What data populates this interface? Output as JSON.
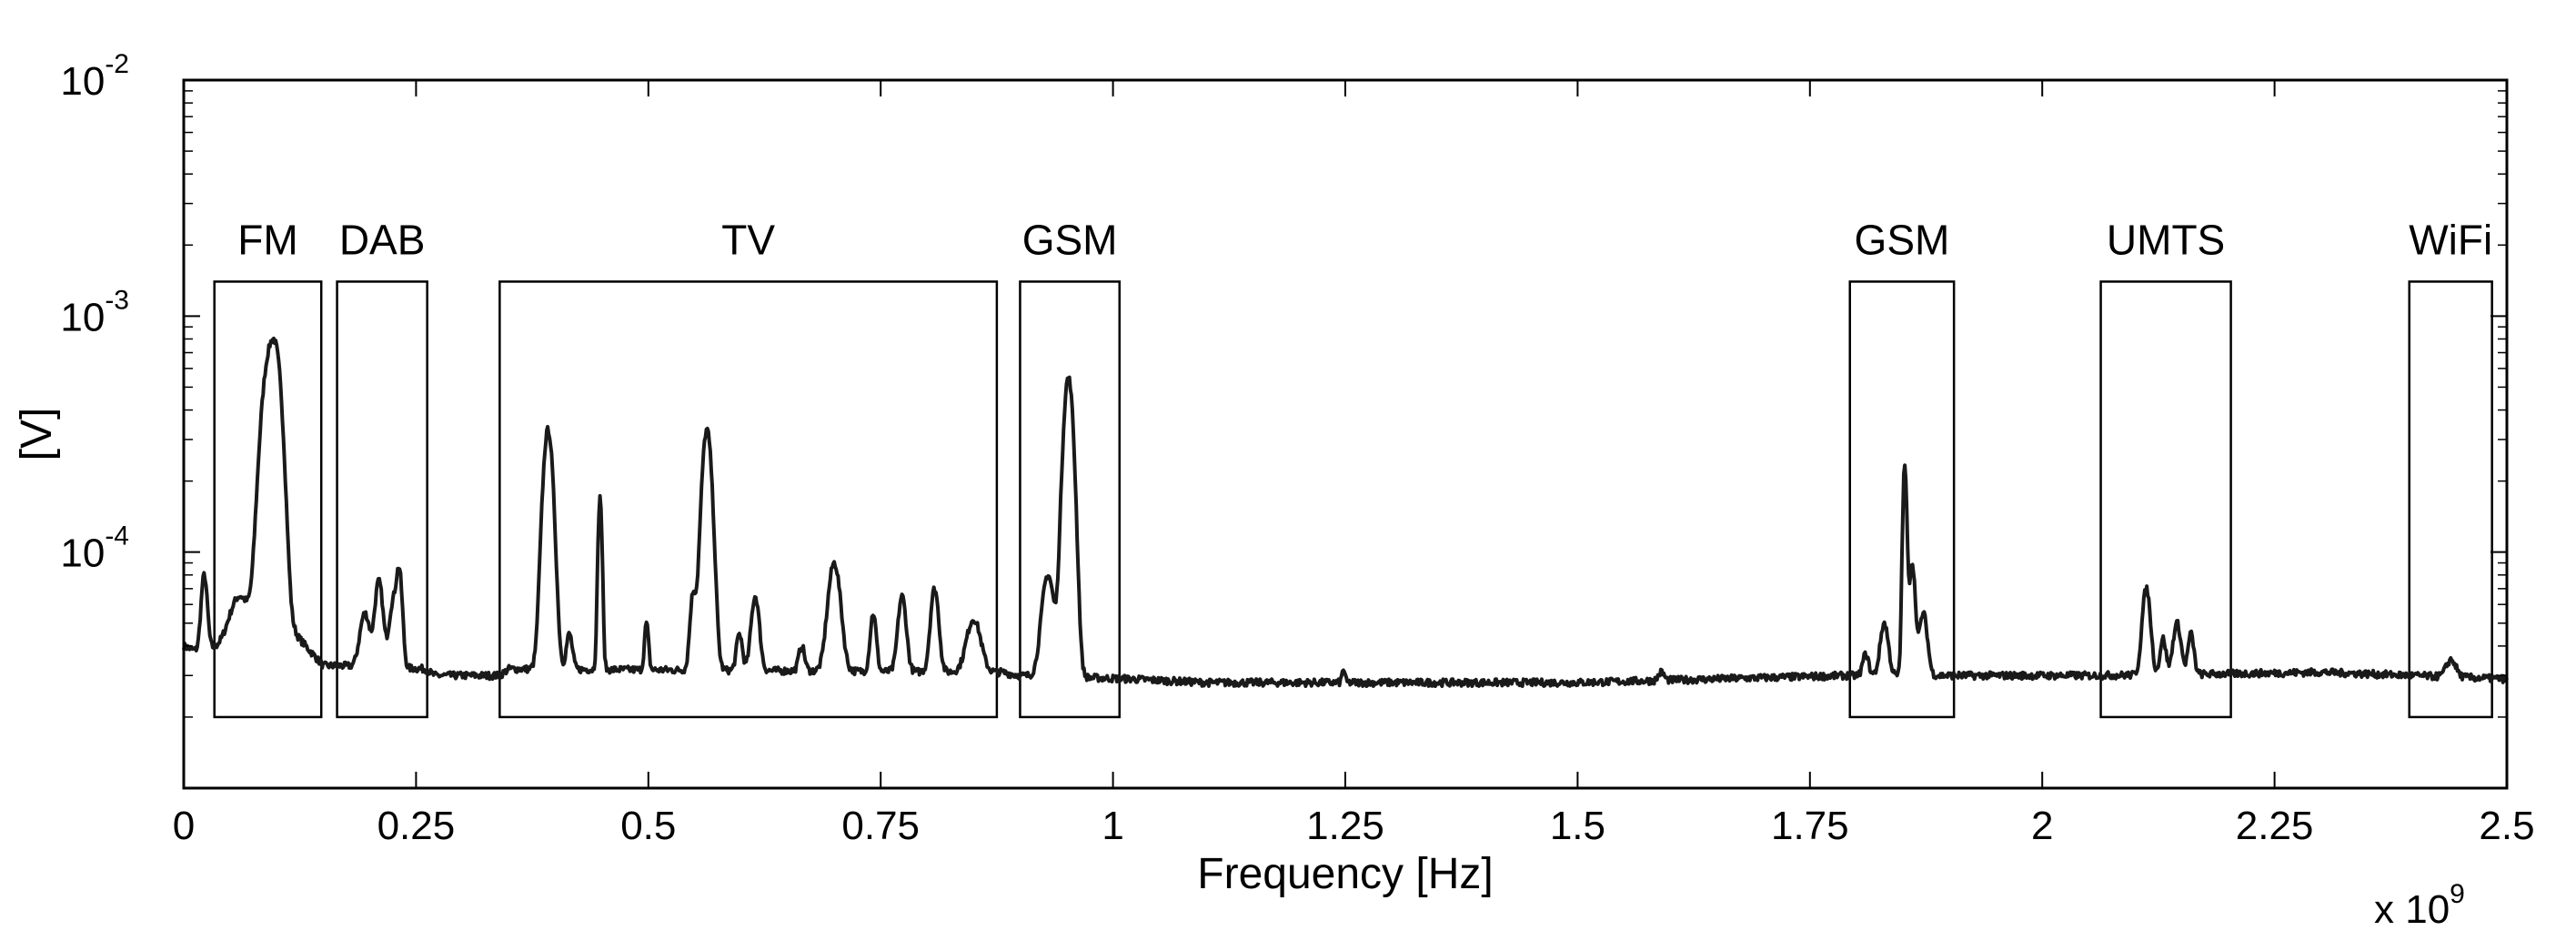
{
  "chart_data": {
    "type": "line",
    "title": "",
    "xlabel": "Frequency [Hz]",
    "ylabel": "[V]",
    "x_multiplier_label": {
      "base": "x 10",
      "exponent": "9"
    },
    "xlim": [
      0,
      2.5
    ],
    "ylim": [
      1e-05,
      0.01
    ],
    "yscale": "log",
    "grid": false,
    "x_ticks": [
      {
        "value": 0,
        "label": "0"
      },
      {
        "value": 0.25,
        "label": "0.25"
      },
      {
        "value": 0.5,
        "label": "0.5"
      },
      {
        "value": 0.75,
        "label": "0.75"
      },
      {
        "value": 1,
        "label": "1"
      },
      {
        "value": 1.25,
        "label": "1.25"
      },
      {
        "value": 1.5,
        "label": "1.5"
      },
      {
        "value": 1.75,
        "label": "1.75"
      },
      {
        "value": 2,
        "label": "2"
      },
      {
        "value": 2.25,
        "label": "2.25"
      },
      {
        "value": 2.5,
        "label": "2.5"
      }
    ],
    "y_ticks": [
      {
        "value": 0.0001,
        "base": "10",
        "exponent": "-4"
      },
      {
        "value": 0.001,
        "base": "10",
        "exponent": "-3"
      },
      {
        "value": 0.01,
        "base": "10",
        "exponent": "-2"
      }
    ],
    "bands": [
      {
        "label": "FM",
        "x": [
          0.033,
          0.148
        ],
        "y": [
          2e-05,
          0.0014
        ]
      },
      {
        "label": "DAB",
        "x": [
          0.165,
          0.262
        ],
        "y": [
          2e-05,
          0.0014
        ]
      },
      {
        "label": "TV",
        "x": [
          0.34,
          0.875
        ],
        "y": [
          2e-05,
          0.0014
        ]
      },
      {
        "label": "GSM",
        "x": [
          0.9,
          1.007
        ],
        "y": [
          2e-05,
          0.0014
        ]
      },
      {
        "label": "GSM",
        "x": [
          1.793,
          1.905
        ],
        "y": [
          2e-05,
          0.0014
        ]
      },
      {
        "label": "UMTS",
        "x": [
          2.063,
          2.203
        ],
        "y": [
          2e-05,
          0.0014
        ]
      },
      {
        "label": "WiFi",
        "x": [
          2.395,
          2.484
        ],
        "y": [
          2e-05,
          0.0014
        ]
      }
    ],
    "series": [
      {
        "color": "#1a1a1a",
        "baseline": [
          [
            0,
            4e-05
          ],
          [
            0.015,
            3.8e-05
          ],
          [
            0.12,
            4.5e-05
          ],
          [
            0.15,
            3.3e-05
          ],
          [
            0.17,
            3.3e-05
          ],
          [
            0.26,
            3.2e-05
          ],
          [
            0.27,
            3e-05
          ],
          [
            0.34,
            3e-05
          ],
          [
            0.35,
            3.2e-05
          ],
          [
            0.88,
            3.1e-05
          ],
          [
            0.9,
            3e-05
          ],
          [
            1.02,
            2.9e-05
          ],
          [
            1.1,
            2.8e-05
          ],
          [
            1.5,
            2.8e-05
          ],
          [
            1.79,
            3e-05
          ],
          [
            1.92,
            3e-05
          ],
          [
            2.05,
            3e-05
          ],
          [
            2.2,
            3.05e-05
          ],
          [
            2.3,
            3.1e-05
          ],
          [
            2.5,
            2.9e-05
          ]
        ],
        "peaks": [
          {
            "x": 0.022,
            "y": 8e-05,
            "w": 0.003
          },
          {
            "x": 0.06,
            "y": 6.5e-05,
            "w": 0.01
          },
          {
            "x": 0.09,
            "y": 0.00055,
            "w": 0.007
          },
          {
            "x": 0.1,
            "y": 0.00055,
            "w": 0.006
          },
          {
            "x": 0.195,
            "y": 5.5e-05,
            "w": 0.005
          },
          {
            "x": 0.21,
            "y": 7.5e-05,
            "w": 0.004
          },
          {
            "x": 0.225,
            "y": 6e-05,
            "w": 0.004
          },
          {
            "x": 0.232,
            "y": 8e-05,
            "w": 0.003
          },
          {
            "x": 0.392,
            "y": 0.00033,
            "w": 0.005
          },
          {
            "x": 0.415,
            "y": 4.5e-05,
            "w": 0.003
          },
          {
            "x": 0.448,
            "y": 0.00017,
            "w": 0.002
          },
          {
            "x": 0.498,
            "y": 5e-05,
            "w": 0.002
          },
          {
            "x": 0.548,
            "y": 6.5e-05,
            "w": 0.003
          },
          {
            "x": 0.563,
            "y": 0.00033,
            "w": 0.005
          },
          {
            "x": 0.598,
            "y": 4.5e-05,
            "w": 0.003
          },
          {
            "x": 0.615,
            "y": 6.5e-05,
            "w": 0.004
          },
          {
            "x": 0.665,
            "y": 4e-05,
            "w": 0.003
          },
          {
            "x": 0.7,
            "y": 9e-05,
            "w": 0.006
          },
          {
            "x": 0.742,
            "y": 5.5e-05,
            "w": 0.003
          },
          {
            "x": 0.773,
            "y": 6.5e-05,
            "w": 0.004
          },
          {
            "x": 0.808,
            "y": 7e-05,
            "w": 0.004
          },
          {
            "x": 0.85,
            "y": 5.2e-05,
            "w": 0.007
          },
          {
            "x": 0.93,
            "y": 8e-05,
            "w": 0.006
          },
          {
            "x": 0.952,
            "y": 0.00055,
            "w": 0.005
          },
          {
            "x": 1.248,
            "y": 3.2e-05,
            "w": 0.0015
          },
          {
            "x": 1.59,
            "y": 3.1e-05,
            "w": 0.003
          },
          {
            "x": 1.81,
            "y": 3.7e-05,
            "w": 0.003
          },
          {
            "x": 1.83,
            "y": 5e-05,
            "w": 0.004
          },
          {
            "x": 1.852,
            "y": 0.00023,
            "w": 0.002
          },
          {
            "x": 1.86,
            "y": 9e-05,
            "w": 0.003
          },
          {
            "x": 1.872,
            "y": 5.5e-05,
            "w": 0.004
          },
          {
            "x": 2.112,
            "y": 7e-05,
            "w": 0.004
          },
          {
            "x": 2.13,
            "y": 4.3e-05,
            "w": 0.003
          },
          {
            "x": 2.145,
            "y": 5e-05,
            "w": 0.004
          },
          {
            "x": 2.16,
            "y": 4.5e-05,
            "w": 0.003
          },
          {
            "x": 2.44,
            "y": 3.5e-05,
            "w": 0.005
          }
        ]
      }
    ]
  }
}
